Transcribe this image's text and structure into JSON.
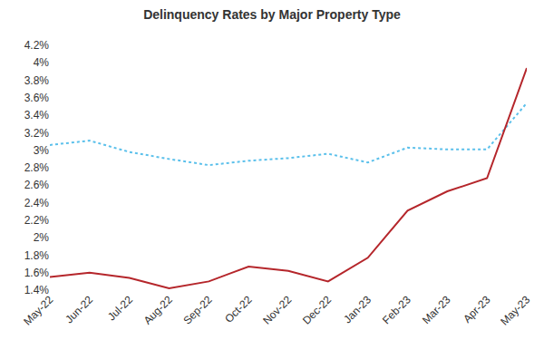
{
  "chart_data": {
    "type": "line",
    "title": "Delinquency Rates by Major Property Type",
    "categories": [
      "May-22",
      "Jun-22",
      "Jul-22",
      "Aug-22",
      "Sep-22",
      "Oct-22",
      "Nov-22",
      "Dec-22",
      "Jan-23",
      "Feb-23",
      "Mar-23",
      "Apr-23",
      "May-23"
    ],
    "series": [
      {
        "color": "#5bc0eb",
        "line_style": "dot",
        "values": [
          3.06,
          3.11,
          2.98,
          2.9,
          2.83,
          2.88,
          2.91,
          2.96,
          2.86,
          3.03,
          3.01,
          3.01,
          3.54
        ]
      },
      {
        "color": "#b5262b",
        "line_style": "solid",
        "values": [
          1.55,
          1.6,
          1.54,
          1.42,
          1.5,
          1.67,
          1.62,
          1.5,
          1.77,
          2.31,
          2.53,
          2.68,
          3.94
        ]
      }
    ],
    "ylim": [
      1.4,
      4.2
    ],
    "yticks": [
      {
        "value": 1.4,
        "label": "1.4%"
      },
      {
        "value": 1.6,
        "label": "1.6%"
      },
      {
        "value": 1.8,
        "label": "1.8%"
      },
      {
        "value": 2.0,
        "label": "2%"
      },
      {
        "value": 2.2,
        "label": "2.2%"
      },
      {
        "value": 2.4,
        "label": "2.4%"
      },
      {
        "value": 2.6,
        "label": "2.6%"
      },
      {
        "value": 2.8,
        "label": "2.8%"
      },
      {
        "value": 3.0,
        "label": "3%"
      },
      {
        "value": 3.2,
        "label": "3.2%"
      },
      {
        "value": 3.4,
        "label": "3.4%"
      },
      {
        "value": 3.6,
        "label": "3.6%"
      },
      {
        "value": 3.8,
        "label": "3.8%"
      },
      {
        "value": 4.0,
        "label": "4%"
      },
      {
        "value": 4.2,
        "label": "4.2%"
      }
    ],
    "grid": false
  }
}
